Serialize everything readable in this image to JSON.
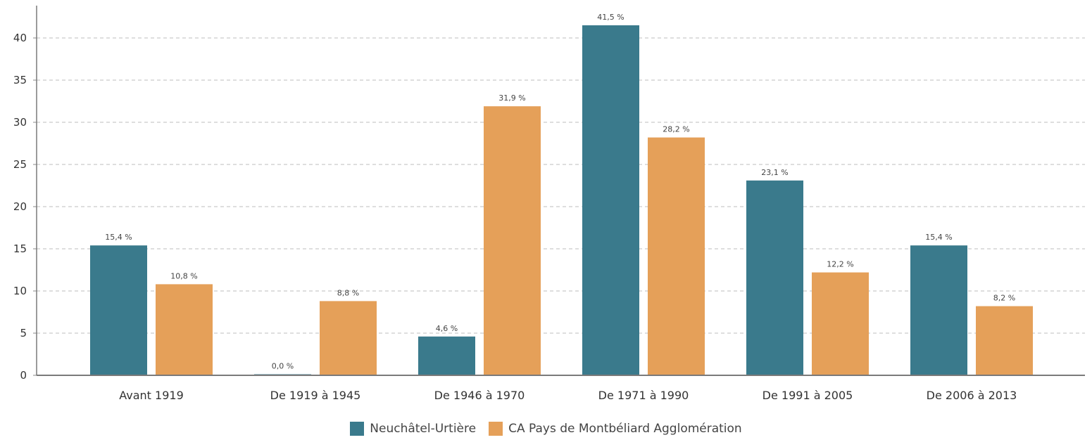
{
  "chart_data": {
    "type": "bar",
    "categories": [
      "Avant 1919",
      "De 1919 à 1945",
      "De 1946 à 1970",
      "De 1971 à 1990",
      "De 1991 à 2005",
      "De 2006 à 2013"
    ],
    "series": [
      {
        "name": "Neuchâtel-Urtière",
        "color": "#3a7a8c",
        "values": [
          15.4,
          0.0,
          4.6,
          41.5,
          23.1,
          15.4
        ],
        "labels": [
          "15,4 %",
          "0,0 %",
          "4,6 %",
          "41,5 %",
          "23,1 %",
          "15,4 %"
        ]
      },
      {
        "name": "CA Pays de Montbéliard Agglomération",
        "color": "#e5a059",
        "values": [
          10.8,
          8.8,
          31.9,
          28.2,
          12.2,
          8.2
        ],
        "labels": [
          "10,8 %",
          "8,8 %",
          "31,9 %",
          "28,2 %",
          "12,2 %",
          "8,2 %"
        ]
      }
    ],
    "ylim": [
      0,
      43
    ],
    "yticks": [
      0,
      5,
      10,
      15,
      20,
      25,
      30,
      35,
      40
    ],
    "grid": true,
    "legend_position": "bottom-center"
  }
}
